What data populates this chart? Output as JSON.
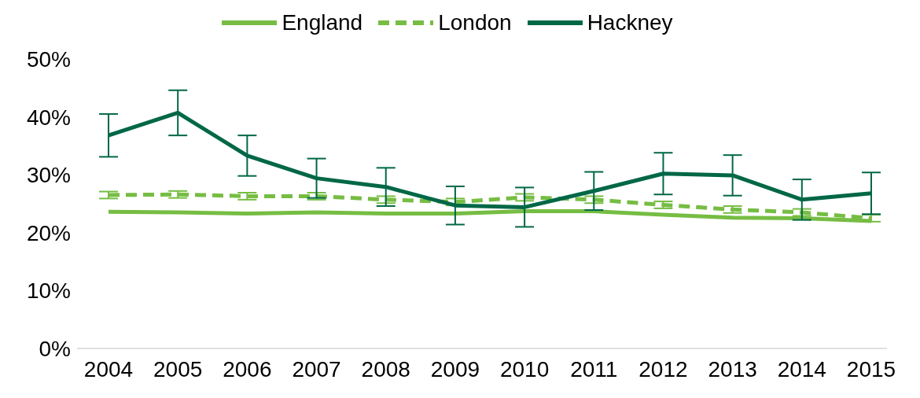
{
  "chart_data": {
    "type": "line",
    "categories": [
      "2004",
      "2005",
      "2006",
      "2007",
      "2008",
      "2009",
      "2010",
      "2011",
      "2012",
      "2013",
      "2014",
      "2015"
    ],
    "series": [
      {
        "name": "England",
        "color": "#76bd43",
        "line_style": "solid",
        "values": [
          23.6,
          23.5,
          23.3,
          23.5,
          23.3,
          23.3,
          23.7,
          23.7,
          23.1,
          22.6,
          22.5,
          22.0
        ]
      },
      {
        "name": "London",
        "color": "#76bd43",
        "line_style": "dashed",
        "values": [
          26.5,
          26.6,
          26.3,
          26.3,
          25.7,
          25.3,
          26.1,
          25.7,
          24.8,
          24.0,
          23.5,
          22.5
        ],
        "errors": [
          0.6,
          0.6,
          0.6,
          0.6,
          0.6,
          0.6,
          0.6,
          0.6,
          0.6,
          0.6,
          0.6,
          0.6
        ]
      },
      {
        "name": "Hackney",
        "color": "#006747",
        "line_style": "solid",
        "values": [
          36.8,
          40.7,
          33.3,
          29.4,
          27.9,
          24.7,
          24.4,
          27.2,
          30.2,
          29.9,
          25.7,
          26.8
        ],
        "errors": [
          3.7,
          3.9,
          3.5,
          3.4,
          3.3,
          3.3,
          3.4,
          3.3,
          3.6,
          3.5,
          3.5,
          3.6
        ]
      }
    ],
    "ylim": [
      0,
      50
    ],
    "yticks": [
      {
        "value": 0,
        "label": "0%"
      },
      {
        "value": 10,
        "label": "10%"
      },
      {
        "value": 20,
        "label": "20%"
      },
      {
        "value": 30,
        "label": "30%"
      },
      {
        "value": 40,
        "label": "40%"
      },
      {
        "value": 50,
        "label": "50%"
      }
    ],
    "grid": false,
    "legend": "top",
    "marker": "none"
  }
}
